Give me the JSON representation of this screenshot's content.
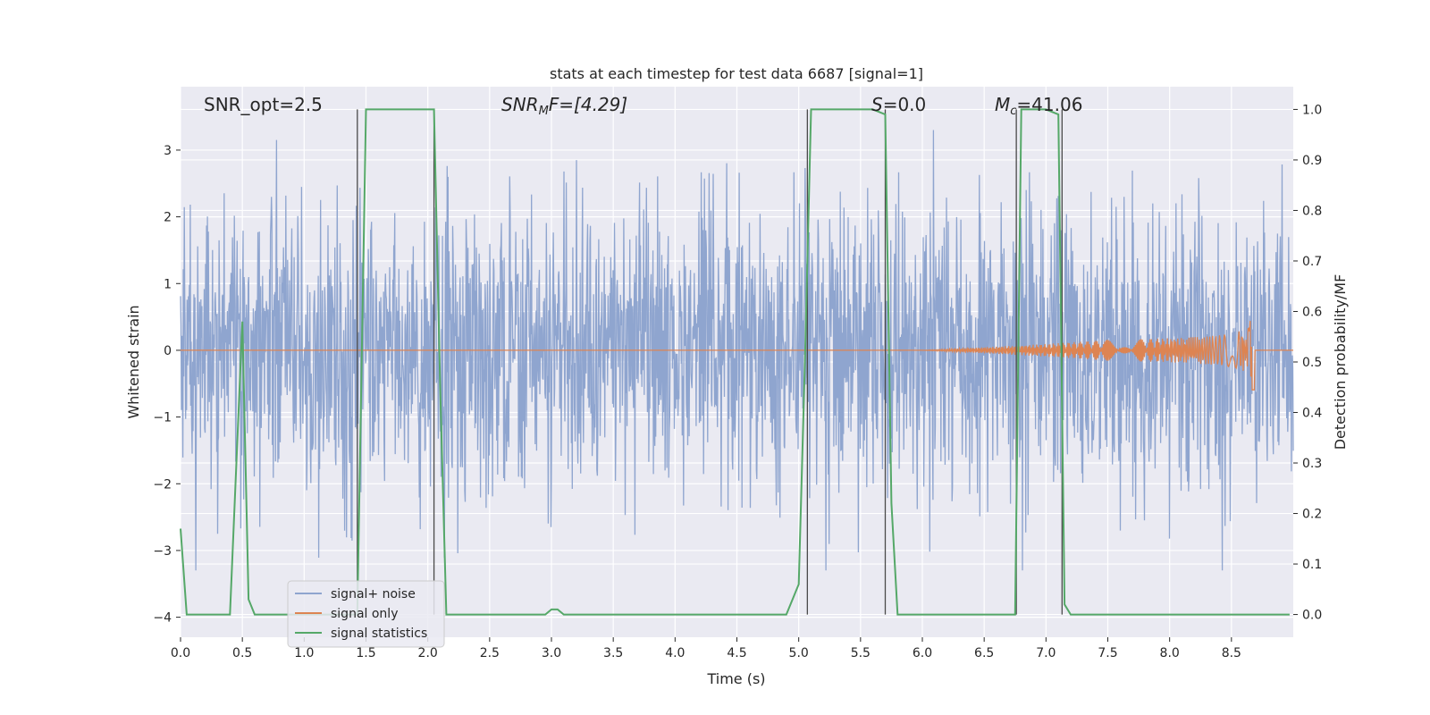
{
  "chart_data": {
    "type": "line",
    "title": "stats at each timestep for test data 6687 [signal=1]",
    "xlabel": "Time (s)",
    "ylabel": "Whitened strain",
    "y2label": "Detection probability/MF",
    "xlim": [
      0.0,
      9.0
    ],
    "ylim": [
      -4.3,
      3.95
    ],
    "y2lim": [
      -0.045,
      1.045
    ],
    "grid": true,
    "legend_placement": "lower-left",
    "x_ticks": [
      "0.0",
      "0.5",
      "1.0",
      "1.5",
      "2.0",
      "2.5",
      "3.0",
      "3.5",
      "4.0",
      "4.5",
      "5.0",
      "5.5",
      "6.0",
      "6.5",
      "7.0",
      "7.5",
      "8.0",
      "8.5"
    ],
    "y_ticks": [
      "3",
      "2",
      "1",
      "0",
      "−1",
      "−2",
      "−3",
      "−4"
    ],
    "y2_ticks": [
      "1.0",
      "0.9",
      "0.8",
      "0.7",
      "0.6",
      "0.5",
      "0.4",
      "0.3",
      "0.2",
      "0.1",
      "0.0"
    ],
    "annotations": {
      "snr_opt": "SNR_opt=2.5",
      "snr_mf_main": "SNR",
      "snr_mf_sub": "M",
      "snr_mf_rest": "F=[4.29]",
      "s_main": "S",
      "s_rest": "=0.0",
      "mc_main": "M",
      "mc_sub": "c",
      "mc_rest": "=41.06"
    },
    "series": [
      {
        "name": "signal+ noise",
        "color": "#8fa5cf",
        "description_values": "dense whitened noise, approx range -3.3 to 3.3",
        "noise_envelope": [
          -3.3,
          3.3
        ]
      },
      {
        "name": "signal only",
        "color": "#dd8452",
        "chirp_start": 6.0,
        "chirp_peak_time": 8.67,
        "chirp_peak_amp": 0.65
      },
      {
        "name": "signal statistics",
        "color": "#55a868",
        "x": [
          0.0,
          0.05,
          0.1,
          0.2,
          0.3,
          0.4,
          0.5,
          0.55,
          0.6,
          0.7,
          0.8,
          0.9,
          1.0,
          1.1,
          1.2,
          1.3,
          1.4,
          1.43,
          1.5,
          1.55,
          1.6,
          1.7,
          1.8,
          1.9,
          2.0,
          2.05,
          2.1,
          2.15,
          2.2,
          2.3,
          2.5,
          2.7,
          2.9,
          2.95,
          3.0,
          3.05,
          3.1,
          3.15,
          3.2,
          3.5,
          4.0,
          4.5,
          4.9,
          5.0,
          5.05,
          5.1,
          5.2,
          5.3,
          5.4,
          5.5,
          5.6,
          5.7,
          5.75,
          5.8,
          5.85,
          5.9,
          6.0,
          6.3,
          6.6,
          6.75,
          6.8,
          6.85,
          6.9,
          7.0,
          7.1,
          7.15,
          7.2,
          7.25,
          7.3,
          7.5,
          8.0,
          8.5,
          8.97
        ],
        "y": [
          0.17,
          0.0,
          0.0,
          0.0,
          0.0,
          0.0,
          0.58,
          0.03,
          0.0,
          0.0,
          0.0,
          0.0,
          0.0,
          0.0,
          0.0,
          0.0,
          0.0,
          0.0,
          1.0,
          1.0,
          1.0,
          1.0,
          1.0,
          1.0,
          1.0,
          1.0,
          0.45,
          0.0,
          0.0,
          0.0,
          0.0,
          0.0,
          0.0,
          0.0,
          0.01,
          0.01,
          0.0,
          0.0,
          0.0,
          0.0,
          0.0,
          0.0,
          0.0,
          0.06,
          0.5,
          1.0,
          1.0,
          1.0,
          1.0,
          1.0,
          1.0,
          0.99,
          0.22,
          0.0,
          0.0,
          0.0,
          0.0,
          0.0,
          0.0,
          0.0,
          1.0,
          1.0,
          1.0,
          1.0,
          0.99,
          0.02,
          0.0,
          0.0,
          0.0,
          0.0,
          0.0,
          0.0,
          0.0
        ]
      }
    ],
    "vertical_markers": [
      1.43,
      2.05,
      5.07,
      5.7,
      6.76,
      7.13
    ]
  }
}
